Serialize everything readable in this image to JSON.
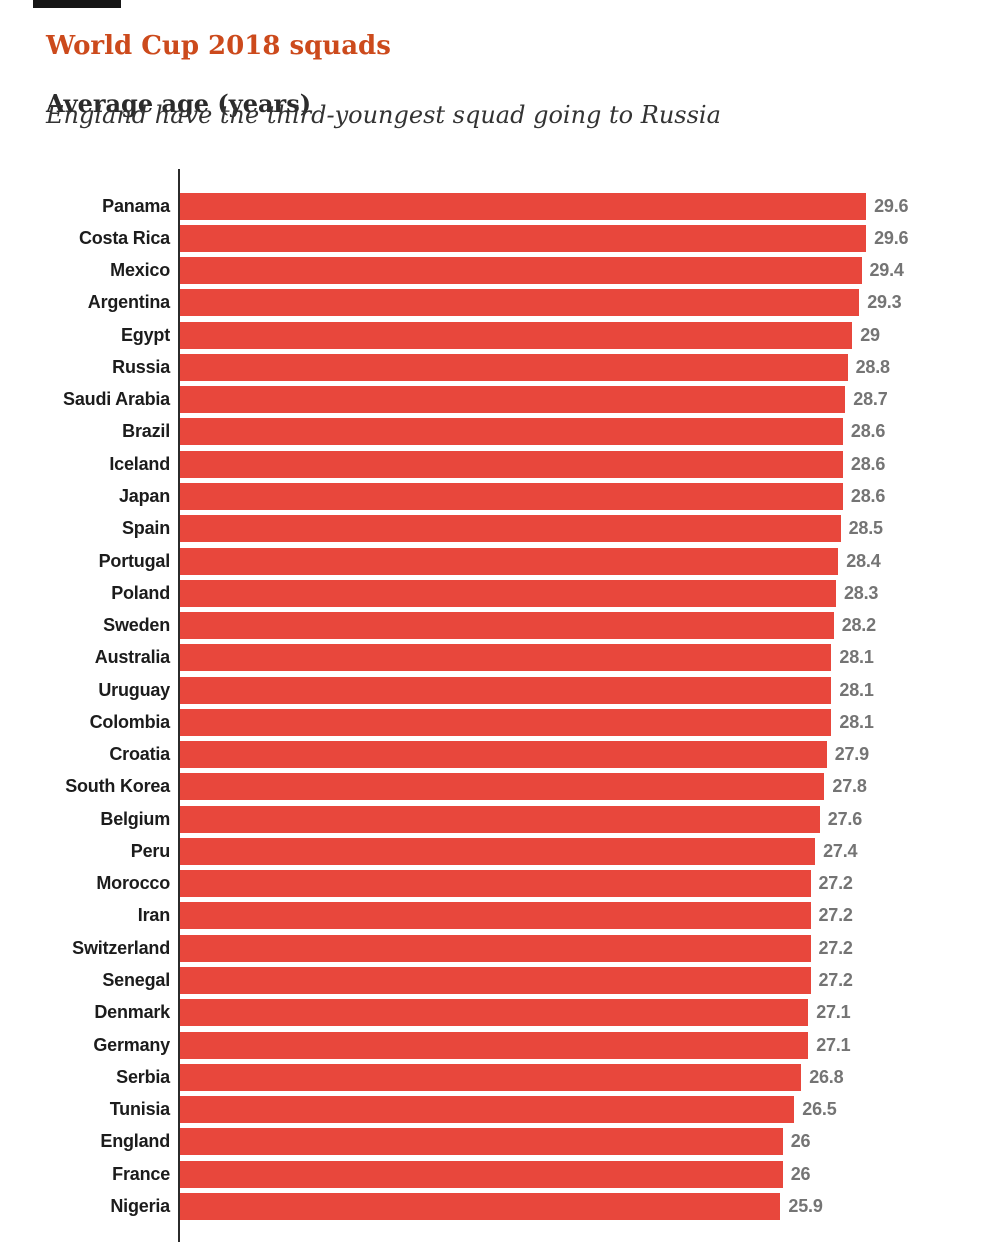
{
  "page": {
    "title": "World Cup 2018 squads",
    "subtitle": "Average age (years)",
    "description": "England have the third-youngest squad going to Russia"
  },
  "colors": {
    "title": "#cc4a1c",
    "bar": "#e8473c",
    "country_label": "#1c1c1c",
    "value_label": "#747474",
    "axis": "#2b2b2b"
  },
  "chart_data": {
    "type": "bar",
    "orientation": "horizontal",
    "title": "World Cup 2018 squads",
    "subtitle": "Average age (years)",
    "annotation": "England have the third-youngest squad going to Russia",
    "xlabel": "Average age (years)",
    "xlim": [
      0,
      29.6
    ],
    "grid": false,
    "legend": "none",
    "sort": "descending",
    "categories": [
      "Panama",
      "Costa Rica",
      "Mexico",
      "Argentina",
      "Egypt",
      "Russia",
      "Saudi Arabia",
      "Brazil",
      "Iceland",
      "Japan",
      "Spain",
      "Portugal",
      "Poland",
      "Sweden",
      "Australia",
      "Uruguay",
      "Colombia",
      "Croatia",
      "South Korea",
      "Belgium",
      "Peru",
      "Morocco",
      "Iran",
      "Switzerland",
      "Senegal",
      "Denmark",
      "Germany",
      "Serbia",
      "Tunisia",
      "England",
      "France",
      "Nigeria"
    ],
    "values": [
      29.6,
      29.6,
      29.4,
      29.3,
      29,
      28.8,
      28.7,
      28.6,
      28.6,
      28.6,
      28.5,
      28.4,
      28.3,
      28.2,
      28.1,
      28.1,
      28.1,
      27.9,
      27.8,
      27.6,
      27.4,
      27.2,
      27.2,
      27.2,
      27.2,
      27.1,
      27.1,
      26.8,
      26.5,
      26,
      26,
      25.9
    ],
    "display_values": [
      "29.6",
      "29.6",
      "29.4",
      "29.3",
      "29",
      "28.8",
      "28.7",
      "28.6",
      "28.6",
      "28.6",
      "28.5",
      "28.4",
      "28.3",
      "28.2",
      "28.1",
      "28.1",
      "28.1",
      "27.9",
      "27.8",
      "27.6",
      "27.4",
      "27.2",
      "27.2",
      "27.2",
      "27.2",
      "27.1",
      "27.1",
      "26.8",
      "26.5",
      "26",
      "26",
      "25.9"
    ]
  }
}
